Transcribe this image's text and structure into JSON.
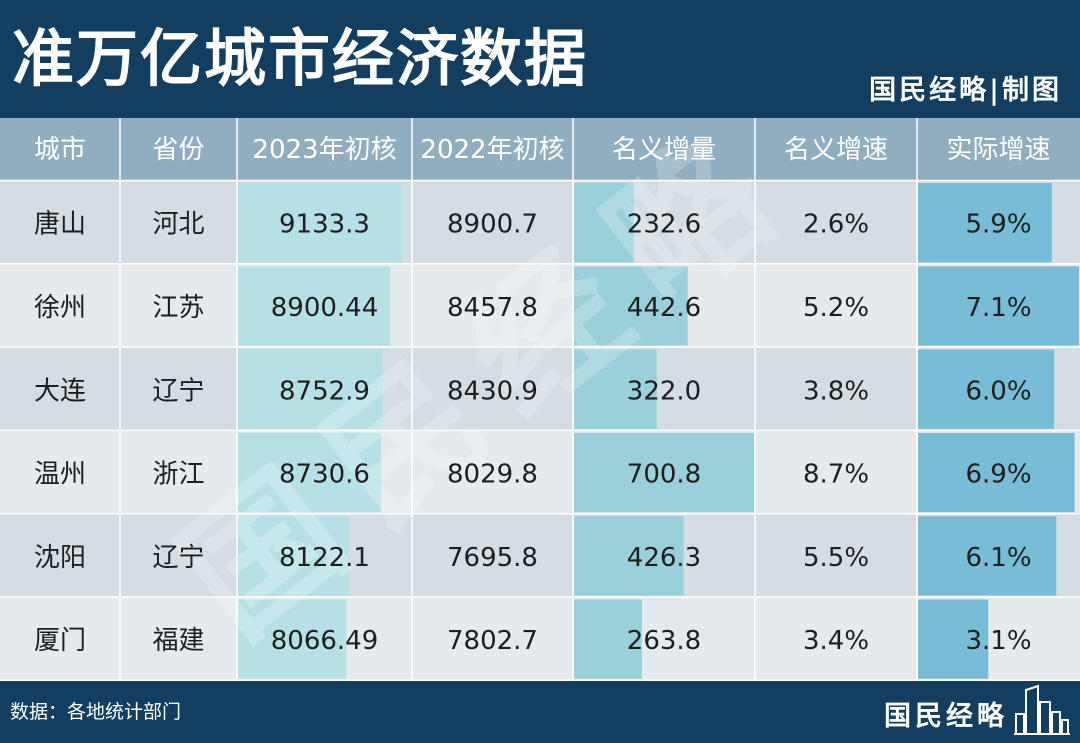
{
  "title": "准万亿城市经济数据",
  "brand": "国民经略|制图",
  "source": "数据：各地统计部门",
  "footer_brand": "国民经略",
  "watermark": "国民经略",
  "colors": {
    "background": "#143e5f",
    "header_row": "#90aebf",
    "row_light": "#e5eaee",
    "row_dark": "#d4dde3",
    "bar_2023": "#b6e0e6",
    "bar_increase": "#99d0d9",
    "bar_real_growth": "#79bcd8"
  },
  "chart_data": {
    "type": "table",
    "title": "准万亿城市经济数据",
    "columns": [
      "城市",
      "省份",
      "2023年初核",
      "2022年初核",
      "名义增量",
      "名义增速",
      "实际增速"
    ],
    "rows": [
      {
        "city": "唐山",
        "province": "河北",
        "gdp_2023": "9133.3",
        "gdp_2022": "8900.7",
        "increase": "232.6",
        "nominal_growth": "2.6%",
        "real_growth": "5.9%"
      },
      {
        "city": "徐州",
        "province": "江苏",
        "gdp_2023": "8900.44",
        "gdp_2022": "8457.8",
        "increase": "442.6",
        "nominal_growth": "5.2%",
        "real_growth": "7.1%"
      },
      {
        "city": "大连",
        "province": "辽宁",
        "gdp_2023": "8752.9",
        "gdp_2022": "8430.9",
        "increase": "322.0",
        "nominal_growth": "3.8%",
        "real_growth": "6.0%"
      },
      {
        "city": "温州",
        "province": "浙江",
        "gdp_2023": "8730.6",
        "gdp_2022": "8029.8",
        "increase": "700.8",
        "nominal_growth": "8.7%",
        "real_growth": "6.9%"
      },
      {
        "city": "沈阳",
        "province": "辽宁",
        "gdp_2023": "8122.1",
        "gdp_2022": "7695.8",
        "increase": "426.3",
        "nominal_growth": "5.5%",
        "real_growth": "6.1%"
      },
      {
        "city": "厦门",
        "province": "福建",
        "gdp_2023": "8066.49",
        "gdp_2022": "7802.7",
        "increase": "263.8",
        "nominal_growth": "3.4%",
        "real_growth": "3.1%"
      }
    ],
    "bar_columns": {
      "gdp_2023": [
        9133.3,
        8900.44,
        8752.9,
        8730.6,
        8122.1,
        8066.49
      ],
      "increase": [
        232.6,
        442.6,
        322.0,
        700.8,
        426.3,
        263.8
      ],
      "real_growth": [
        5.9,
        7.1,
        6.0,
        6.9,
        6.1,
        3.1
      ]
    }
  }
}
